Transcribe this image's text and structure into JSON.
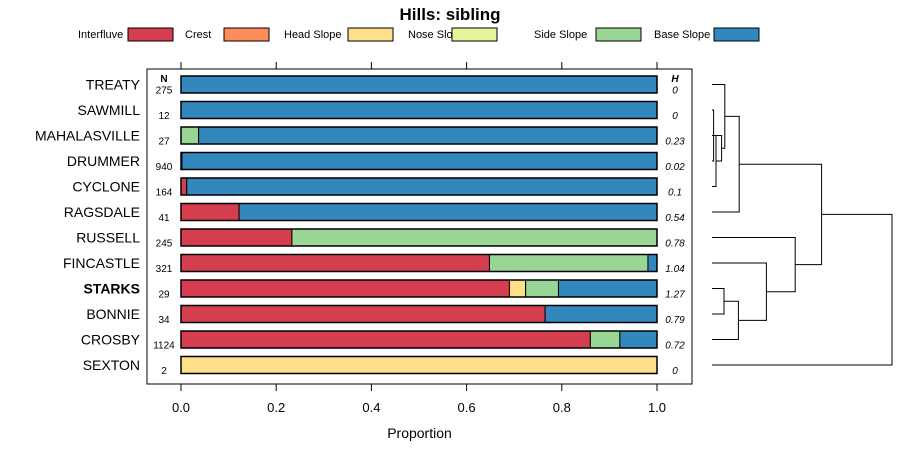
{
  "chart_data": {
    "type": "bar",
    "orientation": "horizontal",
    "stacked": true,
    "title": "Hills: sibling",
    "xlabel": "Proportion",
    "ylabel": "",
    "xlim": [
      0,
      1
    ],
    "x_ticks": [
      "0.0",
      "0.2",
      "0.4",
      "0.6",
      "0.8",
      "1.0"
    ],
    "x_tick_values": [
      0,
      0.2,
      0.4,
      0.6,
      0.8,
      1.0
    ],
    "n_header": "N",
    "h_header": "H",
    "legend_position": "top",
    "series": [
      {
        "name": "Interfluve",
        "color": "#D53E4F"
      },
      {
        "name": "Crest",
        "color": "#FC8D59"
      },
      {
        "name": "Head Slope",
        "color": "#FEE08B"
      },
      {
        "name": "Nose Slope",
        "color": "#E6F598"
      },
      {
        "name": "Side Slope",
        "color": "#99D594"
      },
      {
        "name": "Base Slope",
        "color": "#3288BD"
      }
    ],
    "categories": [
      "TREATY",
      "SAWMILL",
      "MAHALASVILLE",
      "DRUMMER",
      "CYCLONE",
      "RAGSDALE",
      "RUSSELL",
      "FINCASTLE",
      "STARKS",
      "BONNIE",
      "CROSBY",
      "SEXTON"
    ],
    "highlighted_category": "STARKS",
    "n": [
      "275",
      "12",
      "27",
      "940",
      "164",
      "41",
      "245",
      "321",
      "29",
      "34",
      "1124",
      "2"
    ],
    "h": [
      "0",
      "0",
      "0.23",
      "0.02",
      "0.1",
      "0.54",
      "0.78",
      "1.04",
      "1.27",
      "0.79",
      "0.72",
      "0"
    ],
    "values": [
      [
        0,
        0,
        0,
        0,
        0,
        1.0
      ],
      [
        0,
        0,
        0,
        0,
        0,
        1.0
      ],
      [
        0,
        0,
        0,
        0,
        0.037,
        0.963
      ],
      [
        0,
        0,
        0,
        0,
        0.002,
        0.998
      ],
      [
        0.012,
        0,
        0,
        0,
        0,
        0.988
      ],
      [
        0.122,
        0,
        0,
        0,
        0,
        0.878
      ],
      [
        0.233,
        0,
        0,
        0,
        0.767,
        0
      ],
      [
        0.648,
        0,
        0,
        0,
        0.333,
        0.019
      ],
      [
        0.69,
        0,
        0.034,
        0,
        0.069,
        0.207
      ],
      [
        0.765,
        0,
        0,
        0,
        0,
        0.235
      ],
      [
        0.86,
        0,
        0,
        0,
        0.062,
        0.078
      ],
      [
        0,
        0,
        1.0,
        0,
        0,
        0
      ]
    ],
    "dendrogram": {
      "labels": [
        "TREATY",
        "SAWMILL",
        "MAHALASVILLE",
        "DRUMMER",
        "CYCLONE",
        "RAGSDALE",
        "RUSSELL",
        "FINCASTLE",
        "STARKS",
        "BONNIE",
        "CROSBY",
        "SEXTON"
      ],
      "merges": [
        [
          -2,
          -4,
          0.02
        ],
        [
          -5,
          1,
          0.05
        ],
        [
          -3,
          2,
          0.12
        ],
        [
          -1,
          3,
          0.16
        ],
        [
          -6,
          4,
          0.34
        ],
        [
          -9,
          -10,
          0.15
        ],
        [
          -11,
          6,
          0.33
        ],
        [
          -8,
          7,
          0.68
        ],
        [
          -7,
          8,
          1.04
        ],
        [
          5,
          9,
          1.37
        ],
        [
          -12,
          10,
          2.25
        ]
      ]
    }
  }
}
